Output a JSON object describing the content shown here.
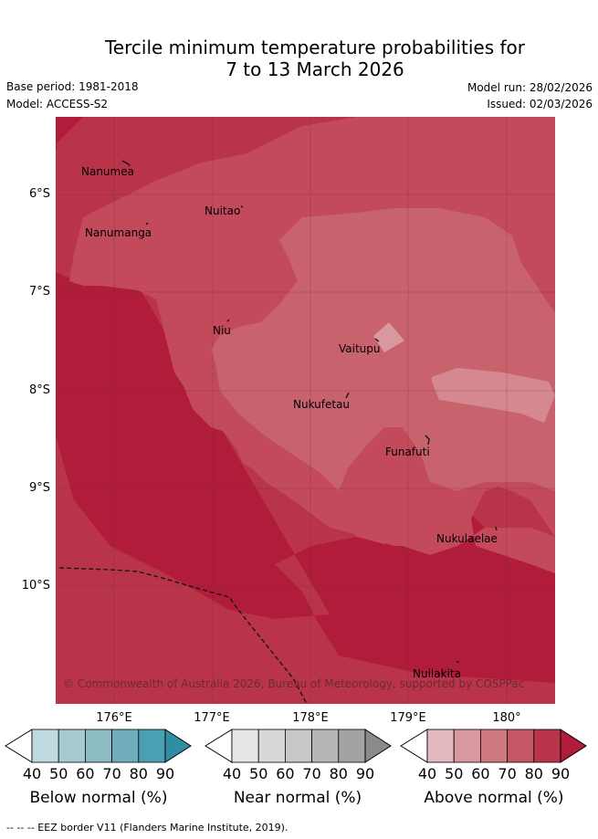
{
  "title_line1": "Tercile minimum temperature probabilities for",
  "title_line2": "7 to 13 March 2026",
  "meta": {
    "base_period": "Base period: 1981-2018",
    "model": "Model: ACCESS-S2",
    "model_run": "Model run: 28/02/2026",
    "issued": "Issued: 02/03/2026"
  },
  "lat_labels": [
    "6°S",
    "7°S",
    "8°S",
    "9°S",
    "10°S"
  ],
  "lon_labels": [
    "176°E",
    "177°E",
    "178°E",
    "179°E",
    "180°"
  ],
  "places": [
    "Nanumea",
    "Nuitao",
    "Nanumanga",
    "Niu",
    "Vaitupu",
    "Nukufetau",
    "Funafuti",
    "Nukulaelae",
    "Nuilakita"
  ],
  "copyright": "© Commonwealth of Australia 2026, Bureau of Meteorology, supported by COSPPac",
  "colorbars": [
    {
      "label": "Below normal (%)",
      "ticks": [
        "40",
        "50",
        "60",
        "70",
        "80",
        "90"
      ],
      "colors": [
        "#bfd9de",
        "#a6cad0",
        "#8cbbc4",
        "#6fadbb",
        "#4aa0b2",
        "#2f8ea3"
      ]
    },
    {
      "label": "Near normal (%)",
      "ticks": [
        "40",
        "50",
        "60",
        "70",
        "80",
        "90"
      ],
      "colors": [
        "#e6e6e6",
        "#d8d8d8",
        "#c8c8c8",
        "#b6b6b6",
        "#a3a3a3",
        "#8a8a8a"
      ]
    },
    {
      "label": "Above normal (%)",
      "ticks": [
        "40",
        "50",
        "60",
        "70",
        "80",
        "90"
      ],
      "colors": [
        "#e3b8bf",
        "#d9979f",
        "#cf7880",
        "#c55765",
        "#b93448",
        "#b01c3a"
      ]
    }
  ],
  "footnote": "--  --  -- EEZ border V11 (Flanders Marine Institute, 2019)."
}
